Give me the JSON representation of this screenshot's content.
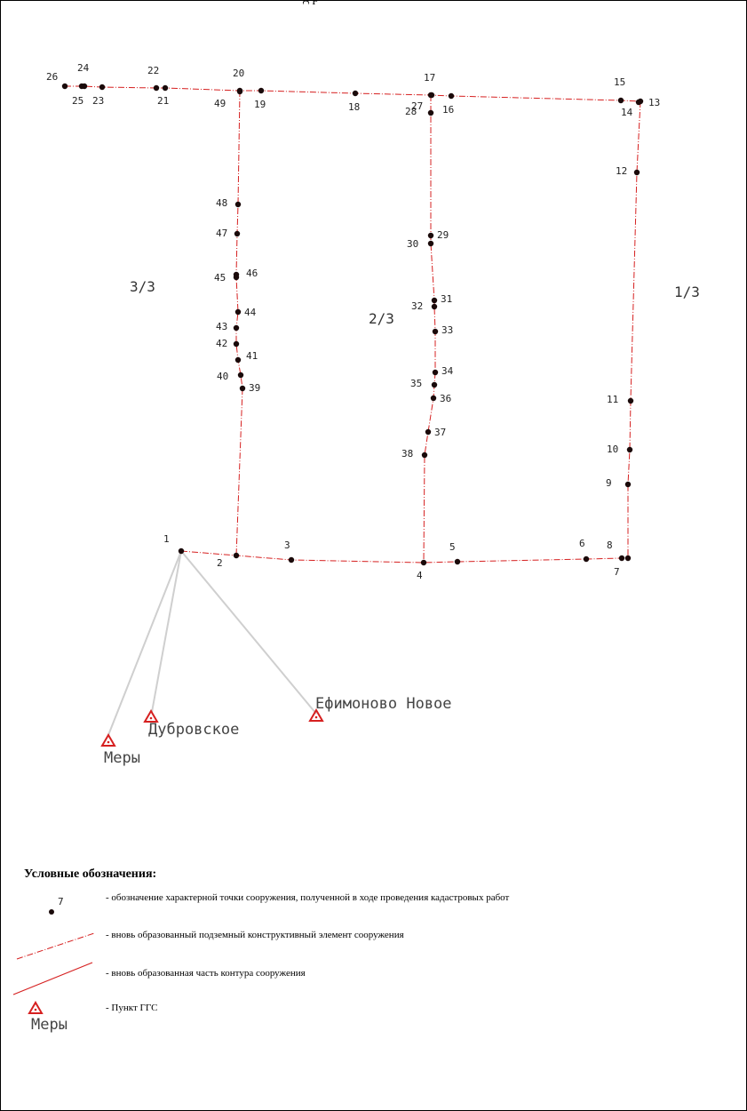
{
  "header": {
    "title_fragment": "д           р"
  },
  "zones": [
    {
      "label": "3/3",
      "id": "zone-3-3"
    },
    {
      "label": "2/3",
      "id": "zone-2-3"
    },
    {
      "label": "1/3",
      "id": "zone-1-3"
    }
  ],
  "points": [
    {
      "n": "1"
    },
    {
      "n": "2"
    },
    {
      "n": "3"
    },
    {
      "n": "4"
    },
    {
      "n": "5"
    },
    {
      "n": "6"
    },
    {
      "n": "7"
    },
    {
      "n": "8"
    },
    {
      "n": "9"
    },
    {
      "n": "10"
    },
    {
      "n": "11"
    },
    {
      "n": "12"
    },
    {
      "n": "13"
    },
    {
      "n": "14"
    },
    {
      "n": "15"
    },
    {
      "n": "16"
    },
    {
      "n": "17"
    },
    {
      "n": "18"
    },
    {
      "n": "19"
    },
    {
      "n": "20"
    },
    {
      "n": "21"
    },
    {
      "n": "22"
    },
    {
      "n": "23"
    },
    {
      "n": "24"
    },
    {
      "n": "25"
    },
    {
      "n": "26"
    },
    {
      "n": "27"
    },
    {
      "n": "28"
    },
    {
      "n": "29"
    },
    {
      "n": "30"
    },
    {
      "n": "31"
    },
    {
      "n": "32"
    },
    {
      "n": "33"
    },
    {
      "n": "34"
    },
    {
      "n": "35"
    },
    {
      "n": "36"
    },
    {
      "n": "37"
    },
    {
      "n": "38"
    },
    {
      "n": "39"
    },
    {
      "n": "40"
    },
    {
      "n": "41"
    },
    {
      "n": "42"
    },
    {
      "n": "43"
    },
    {
      "n": "44"
    },
    {
      "n": "45"
    },
    {
      "n": "46"
    },
    {
      "n": "47"
    },
    {
      "n": "48"
    },
    {
      "n": "49"
    }
  ],
  "ggs_points": [
    {
      "name": "Меры"
    },
    {
      "name": "Дубровское"
    },
    {
      "name": "Ефимоново Новое"
    }
  ],
  "legend": {
    "title": "Условные обозначения:",
    "items": [
      {
        "sample_label": "7",
        "text": "- обозначение характерной точки сооружения, полученной в ходе проведения кадастровых работ"
      },
      {
        "text": "- вновь образованный подземный конструктивный элемент сооружения"
      },
      {
        "text": "- вновь образованная часть контура сооружения"
      },
      {
        "sample_label": "Меры",
        "text": "- Пункт ГГС"
      }
    ]
  },
  "colors": {
    "contour": "#d62020",
    "point": "#1a0a0a",
    "ggs": "#d62020",
    "ray": "#c8c8c8"
  }
}
